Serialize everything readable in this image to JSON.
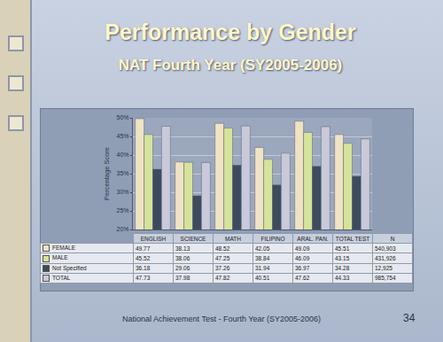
{
  "chart_data": {
    "type": "bar",
    "title": "Performance by Gender",
    "subtitle": "NAT Fourth Year (SY2005-2006)",
    "y_label": "Percentage Score",
    "categories": [
      "ENGLISH",
      "SCIENCE",
      "MATH",
      "FILIPINO",
      "ARAL. PAN.",
      "TOTAL TEST"
    ],
    "n_header": "N",
    "series": [
      {
        "name": "FEMALE",
        "color": "#efe3c4",
        "values": [
          49.77,
          38.13,
          48.52,
          42.05,
          49.09,
          45.51
        ],
        "n": {
          "value": 540903,
          "label": "540,903"
        }
      },
      {
        "name": "MALE",
        "color": "#d6e39a",
        "values": [
          45.52,
          38.06,
          47.25,
          38.84,
          46.09,
          43.15
        ],
        "n": {
          "value": 431926,
          "label": "431,926"
        }
      },
      {
        "name": "Not Specified",
        "color": "#3e4b5e",
        "values": [
          36.18,
          29.06,
          37.26,
          31.94,
          36.97,
          34.28
        ],
        "n": {
          "value": 12925,
          "label": "12,925"
        }
      },
      {
        "name": "TOTAL",
        "color": "#c9c9da",
        "values": [
          47.73,
          37.98,
          47.82,
          40.51,
          47.62,
          44.33
        ],
        "n": {
          "value": 985754,
          "label": "985,754"
        }
      }
    ],
    "ylim": [
      20,
      50
    ],
    "yticks": [
      {
        "value": 20,
        "label": "20%"
      },
      {
        "value": 25,
        "label": "25%"
      },
      {
        "value": 30,
        "label": "30%"
      },
      {
        "value": 35,
        "label": "35%"
      },
      {
        "value": 40,
        "label": "40%"
      },
      {
        "value": 45,
        "label": "45%"
      },
      {
        "value": 50,
        "label": "50%"
      }
    ],
    "grid": true,
    "tick_labels": "y"
  },
  "slide": {
    "footer": "National Achievement Test - Fourth Year (SY2005-2006)",
    "page": "34"
  }
}
